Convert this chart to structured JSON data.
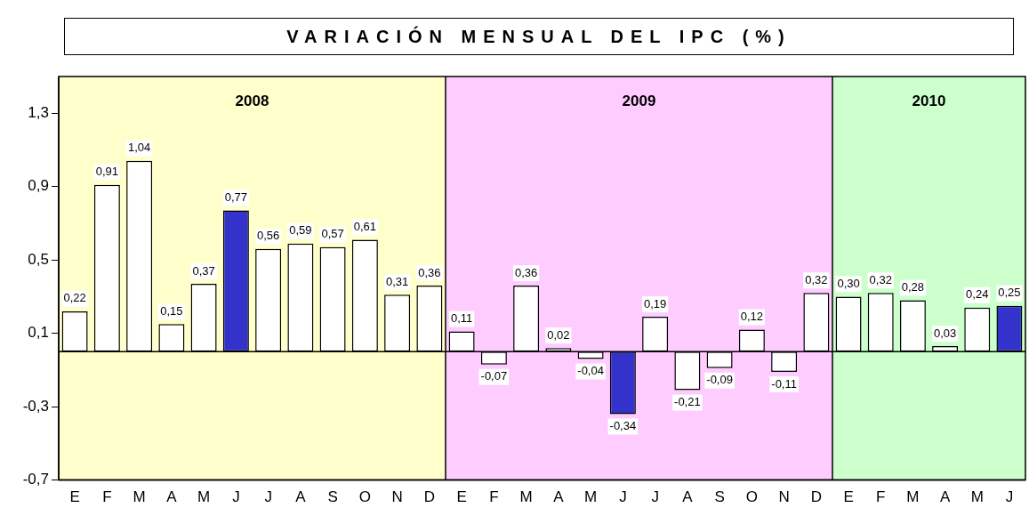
{
  "chart_data": [
    {
      "type": "bar",
      "title": "VARIACIÓN MENSUAL DEL IPC (%)",
      "categories": [
        "E",
        "F",
        "M",
        "A",
        "M",
        "J",
        "J",
        "A",
        "S",
        "O",
        "N",
        "D"
      ],
      "values": [
        0.22,
        0.91,
        1.04,
        0.15,
        0.37,
        0.77,
        0.56,
        0.59,
        0.57,
        0.61,
        0.31,
        0.36
      ],
      "value_labels": [
        "0,22",
        "0,91",
        "1,04",
        "0,15",
        "0,37",
        "0,77",
        "0,56",
        "0,59",
        "0,57",
        "0,61",
        "0,31",
        "0,36"
      ],
      "colors": [
        "#ffffff",
        "#ffffff",
        "#ffffff",
        "#ffffff",
        "#ffffff",
        "#3333cc",
        "#ffffff",
        "#ffffff",
        "#ffffff",
        "#ffffff",
        "#ffffff",
        "#ffffff"
      ],
      "ylim": [
        -0.7,
        1.5
      ],
      "yticks": [
        {
          "value": -0.7,
          "label": "-0,7"
        },
        {
          "value": -0.3,
          "label": "-0,3"
        },
        {
          "value": 0.1,
          "label": "0,1"
        },
        {
          "value": 0.5,
          "label": "0,5"
        },
        {
          "value": 0.9,
          "label": "0,9"
        },
        {
          "value": 1.3,
          "label": "1,3"
        }
      ],
      "bands": [
        {
          "axis": "x",
          "from": "E",
          "to": "D",
          "label": "2008",
          "color": "#ffffcc"
        }
      ],
      "grid": false,
      "legend": false
    },
    {
      "type": "bar",
      "categories": [
        "E",
        "F",
        "M",
        "A",
        "M",
        "J",
        "J",
        "A",
        "S",
        "O",
        "N",
        "D"
      ],
      "values": [
        0.11,
        -0.07,
        0.36,
        0.02,
        -0.04,
        -0.34,
        0.19,
        -0.21,
        -0.09,
        0.12,
        -0.11,
        0.32
      ],
      "value_labels": [
        "0,11",
        "-0,07",
        "0,36",
        "0,02",
        "-0,04",
        "-0,34",
        "0,19",
        "-0,21",
        "-0,09",
        "0,12",
        "-0,11",
        "0,32"
      ],
      "colors": [
        "#ffffff",
        "#ffffff",
        "#ffffff",
        "#ffffff",
        "#ffffff",
        "#3333cc",
        "#ffffff",
        "#ffffff",
        "#ffffff",
        "#ffffff",
        "#ffffff",
        "#ffffff"
      ],
      "ylim": [
        -0.7,
        1.5
      ],
      "tick_labels": "x",
      "bands": [
        {
          "axis": "x",
          "from": "E",
          "to": "D",
          "label": "2009",
          "color": "#ffccff"
        }
      ],
      "grid": false,
      "legend": false
    },
    {
      "type": "bar",
      "categories": [
        "E",
        "F",
        "M",
        "A",
        "M",
        "J"
      ],
      "values": [
        0.3,
        0.32,
        0.28,
        0.03,
        0.24,
        0.25
      ],
      "value_labels": [
        "0,30",
        "0,32",
        "0,28",
        "0,03",
        "0,24",
        "0,25"
      ],
      "colors": [
        "#ffffff",
        "#ffffff",
        "#ffffff",
        "#ffffff",
        "#ffffff",
        "#3333cc"
      ],
      "ylim": [
        -0.7,
        1.5
      ],
      "tick_labels": "x",
      "bands": [
        {
          "axis": "x",
          "from": "E",
          "to": "J",
          "label": "2010",
          "color": "#ccffcc"
        }
      ],
      "grid": false,
      "legend": false
    }
  ]
}
